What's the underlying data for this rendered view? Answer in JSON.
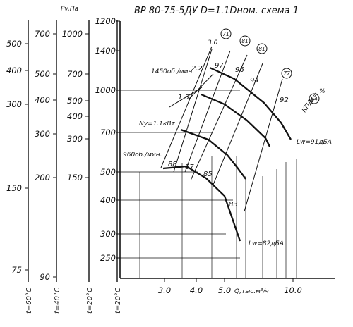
{
  "chart_data": {
    "type": "line",
    "title": "ВР 80-75-5ДУ D=1.1Dном. схема 1",
    "xlabel": "Q,тыс.м³/ч",
    "ylabel": "",
    "x_scale": "log",
    "y_scale": "log",
    "xlim": [
      2.0,
      12.5
    ],
    "ylim": [
      200,
      1200
    ],
    "main_y_ticks": [
      "1200",
      "1400",
      "1000",
      "700",
      "500",
      "400",
      "300",
      "250"
    ],
    "main_y_tick_values": [
      1200,
      1400,
      1000,
      700,
      500,
      400,
      300,
      250
    ],
    "x_ticks": [
      "3.0",
      "4.0",
      "5.0",
      "10.0"
    ],
    "x_tick_values": [
      3,
      4,
      5,
      10
    ],
    "left_scales": [
      {
        "label": "t=60°C",
        "ticks": [
          "500",
          "400",
          "300",
          "150",
          "75"
        ]
      },
      {
        "label": "t=40°C",
        "ticks": [
          "700",
          "500",
          "400",
          "300",
          "200",
          "90"
        ]
      },
      {
        "label": "t=20°C",
        "ticks": [
          "1000",
          "700",
          "500",
          "400",
          "300",
          "150"
        ]
      },
      {
        "label": "t=20°C",
        "ticks": []
      }
    ],
    "pv_label": "Pv,Па",
    "series": [
      {
        "name": "1450об./мин.",
        "points": [
          [
            6.2,
            1190
          ],
          [
            7.6,
            1040
          ],
          [
            8.7,
            860
          ],
          [
            9.4,
            740
          ],
          [
            9.9,
            640
          ]
        ]
      },
      {
        "name": "",
        "points": [
          [
            5.4,
            1000
          ],
          [
            6.9,
            860
          ],
          [
            7.9,
            720
          ],
          [
            8.7,
            620
          ],
          [
            9.0,
            570
          ]
        ]
      },
      {
        "name": "",
        "points": [
          [
            3.2,
            760
          ],
          [
            4.6,
            700
          ],
          [
            6.0,
            600
          ],
          [
            6.8,
            520
          ],
          [
            7.5,
            450
          ]
        ]
      },
      {
        "name": "960об./мин.",
        "points": [
          [
            2.8,
            520
          ],
          [
            3.6,
            500
          ],
          [
            4.6,
            430
          ],
          [
            5.5,
            370
          ],
          [
            6.2,
            300
          ]
        ]
      }
    ],
    "power_labels": [
      "2.2",
      "1.5",
      "Ny=1.1кВт"
    ],
    "speed_labels": [
      "1450об./мин.",
      "960об./мин."
    ],
    "efficiency_labels": [
      "97",
      "96",
      "94",
      "92",
      "88",
      "87",
      "85",
      "83"
    ],
    "efficiency_circles": [
      "71",
      "81",
      "81",
      "77",
      "64"
    ],
    "rpm_top_label": "3.0",
    "noise_labels": [
      "Lw=91дБА",
      "Lw=82дБА"
    ],
    "kpd_label": "КПДс=",
    "percent_sign": "%"
  }
}
